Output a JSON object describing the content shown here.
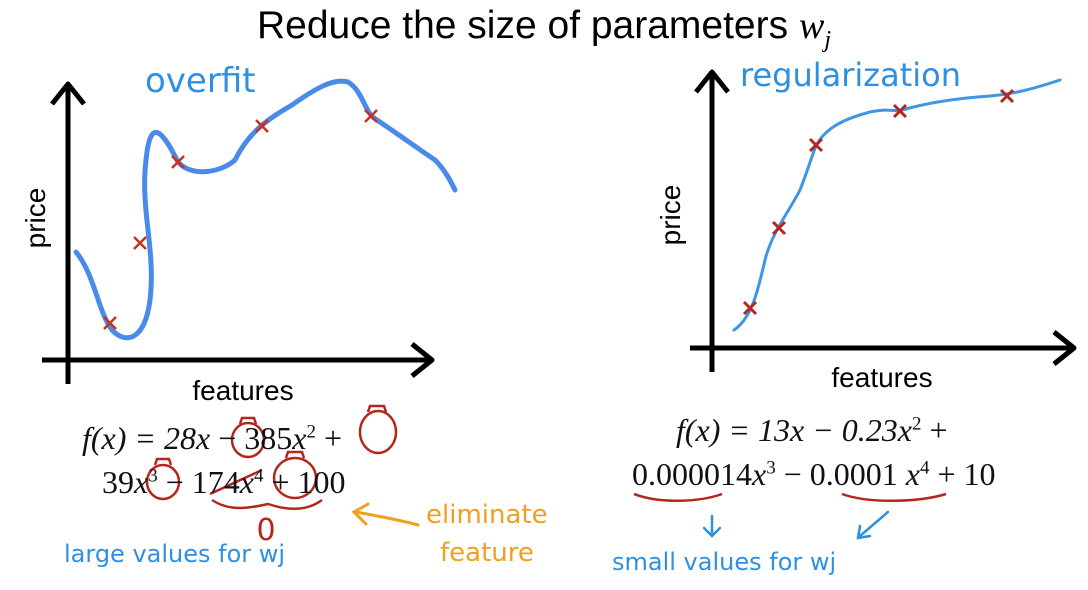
{
  "title": {
    "text": "Reduce the size of parameters",
    "var": "w",
    "sub": "j"
  },
  "left_plot": {
    "annotation": "overfit",
    "y_label": "price",
    "x_label": "features",
    "equation_line1": {
      "f": "f(x) = 28",
      "t1": "x",
      "m1": " − 385",
      "t2": "x",
      "p2": "2",
      "tail": " +"
    },
    "equation_line2": {
      "c3": "39",
      "t3": "x",
      "p3": "3",
      "m2": " − ",
      "c4": "174",
      "t4": "x",
      "p4": "4",
      "tail": " + 100"
    },
    "zero_mark": "0",
    "note_blue": "large values for wj",
    "note_orange_1": "eliminate",
    "note_orange_2": "feature"
  },
  "right_plot": {
    "annotation": "regularization",
    "y_label": "price",
    "x_label": "features",
    "equation_line1": {
      "f": "f(x) = 13x − 0.23x",
      "p2": "2",
      "tail": " +"
    },
    "equation_line2": {
      "c3": "0.000014",
      "t3": "x",
      "p3": "3",
      "m": " − ",
      "c4": "0.0001",
      "t4": " x",
      "p4": "4",
      "tail": " + 10"
    },
    "note_blue": "small values for wj"
  },
  "colors": {
    "curve": "#4a8ae8",
    "marker": "#c8321e",
    "note_blue": "#2f8fe0",
    "note_orange": "#f0a020",
    "circle": "#b5261c"
  }
}
